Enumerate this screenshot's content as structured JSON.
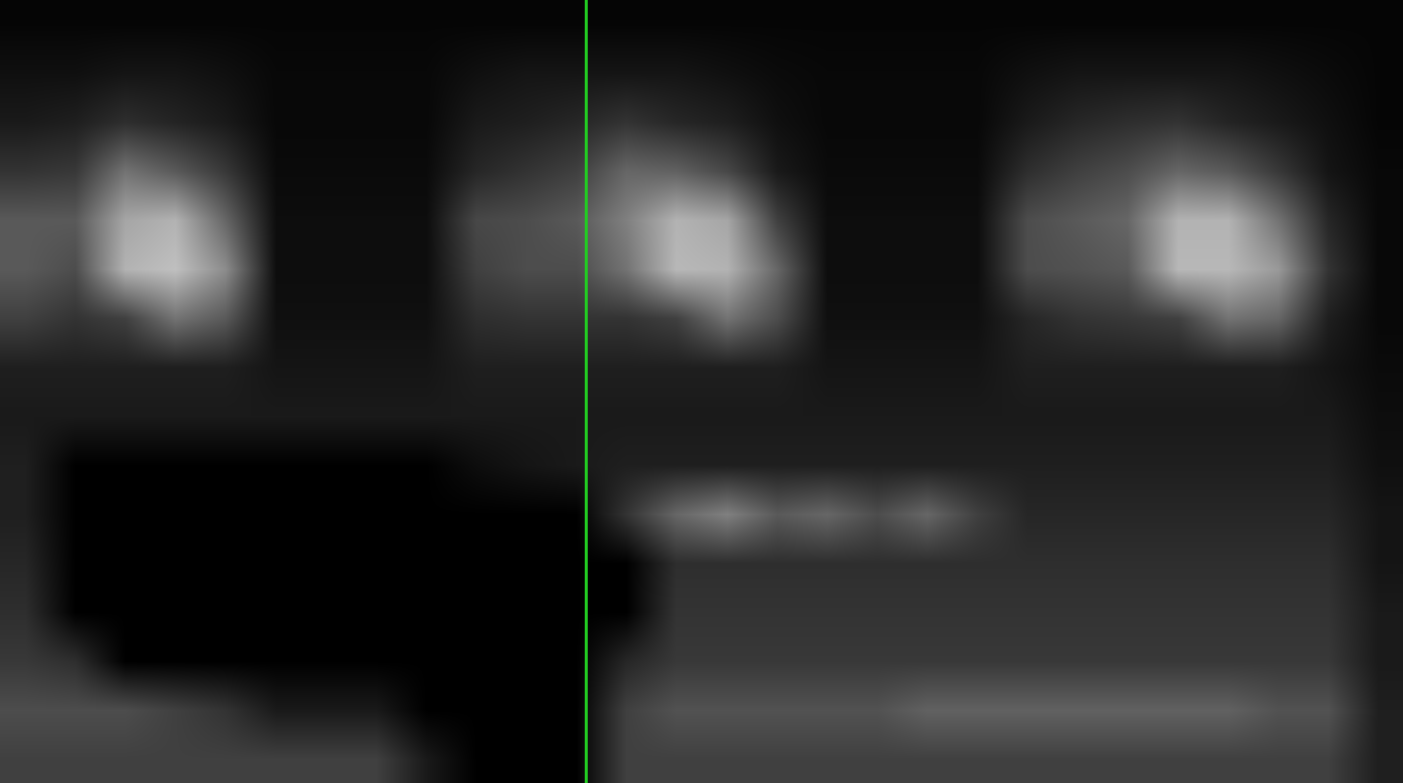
{
  "chart_data": {
    "type": "heatmap",
    "tick_labels": false,
    "grid": false,
    "colors": [
      "#000000",
      "#ffffff"
    ],
    "xlim": [
      0,
      28
    ],
    "ylim": [
      16,
      0
    ],
    "zlim": [
      0,
      100
    ],
    "cursor": {
      "x": 11.7,
      "color": "#22cc22"
    },
    "cells": [
      [
        2,
        2,
        2,
        2,
        2,
        2,
        2,
        2,
        2,
        2,
        2,
        2,
        2,
        2,
        2,
        2,
        2,
        2,
        2,
        2,
        2,
        2,
        2,
        2,
        2,
        2,
        2,
        2
      ],
      [
        6,
        6,
        8,
        8,
        6,
        3,
        3,
        3,
        3,
        6,
        8,
        8,
        8,
        8,
        6,
        4,
        3,
        3,
        3,
        3,
        6,
        8,
        8,
        8,
        8,
        6,
        4,
        2
      ],
      [
        10,
        12,
        18,
        14,
        10,
        3,
        3,
        3,
        3,
        10,
        12,
        15,
        20,
        15,
        12,
        6,
        3,
        3,
        3,
        3,
        10,
        15,
        18,
        20,
        14,
        10,
        6,
        2
      ],
      [
        20,
        22,
        45,
        35,
        22,
        4,
        4,
        4,
        4,
        15,
        20,
        25,
        40,
        38,
        28,
        10,
        4,
        4,
        4,
        4,
        18,
        25,
        30,
        40,
        35,
        22,
        8,
        3
      ],
      [
        35,
        35,
        65,
        70,
        40,
        5,
        5,
        5,
        5,
        28,
        30,
        35,
        50,
        70,
        65,
        25,
        5,
        5,
        5,
        5,
        30,
        35,
        40,
        70,
        70,
        45,
        15,
        3
      ],
      [
        35,
        30,
        70,
        75,
        55,
        5,
        5,
        5,
        5,
        25,
        30,
        30,
        45,
        72,
        70,
        40,
        5,
        5,
        5,
        5,
        30,
        32,
        35,
        72,
        72,
        60,
        20,
        3
      ],
      [
        25,
        20,
        25,
        45,
        35,
        6,
        6,
        6,
        6,
        18,
        20,
        20,
        20,
        25,
        45,
        30,
        6,
        6,
        6,
        6,
        15,
        20,
        22,
        25,
        45,
        40,
        12,
        3
      ],
      [
        12,
        12,
        12,
        12,
        12,
        8,
        8,
        8,
        8,
        12,
        12,
        12,
        12,
        12,
        12,
        12,
        8,
        8,
        8,
        8,
        12,
        12,
        12,
        12,
        12,
        12,
        8,
        4
      ],
      [
        10,
        10,
        10,
        10,
        10,
        10,
        10,
        10,
        10,
        10,
        10,
        10,
        10,
        10,
        10,
        10,
        10,
        10,
        10,
        10,
        10,
        10,
        10,
        10,
        10,
        10,
        10,
        5
      ],
      [
        12,
        0,
        0,
        0,
        0,
        0,
        0,
        0,
        0,
        5,
        8,
        10,
        12,
        12,
        12,
        12,
        12,
        12,
        12,
        12,
        12,
        12,
        12,
        12,
        12,
        12,
        12,
        6
      ],
      [
        12,
        0,
        0,
        0,
        0,
        0,
        0,
        0,
        0,
        0,
        0,
        0,
        20,
        40,
        50,
        35,
        40,
        30,
        40,
        25,
        15,
        15,
        15,
        15,
        15,
        15,
        15,
        8
      ],
      [
        15,
        0,
        0,
        0,
        0,
        0,
        0,
        0,
        0,
        0,
        0,
        0,
        0,
        18,
        18,
        18,
        18,
        18,
        18,
        18,
        18,
        18,
        18,
        18,
        18,
        18,
        18,
        8
      ],
      [
        18,
        0,
        0,
        0,
        0,
        0,
        0,
        0,
        0,
        0,
        0,
        0,
        0,
        20,
        20,
        20,
        20,
        20,
        20,
        20,
        20,
        20,
        20,
        20,
        20,
        20,
        20,
        10
      ],
      [
        22,
        18,
        0,
        0,
        0,
        0,
        0,
        0,
        0,
        0,
        0,
        0,
        15,
        22,
        22,
        22,
        22,
        22,
        22,
        22,
        22,
        22,
        22,
        22,
        22,
        22,
        22,
        10
      ],
      [
        30,
        30,
        30,
        25,
        20,
        10,
        10,
        10,
        0,
        0,
        0,
        0,
        25,
        32,
        32,
        32,
        32,
        32,
        38,
        38,
        38,
        38,
        38,
        38,
        38,
        32,
        32,
        12
      ],
      [
        25,
        25,
        25,
        25,
        25,
        25,
        25,
        25,
        10,
        0,
        0,
        0,
        25,
        25,
        25,
        25,
        25,
        25,
        25,
        25,
        25,
        25,
        25,
        25,
        25,
        25,
        25,
        12
      ]
    ]
  }
}
